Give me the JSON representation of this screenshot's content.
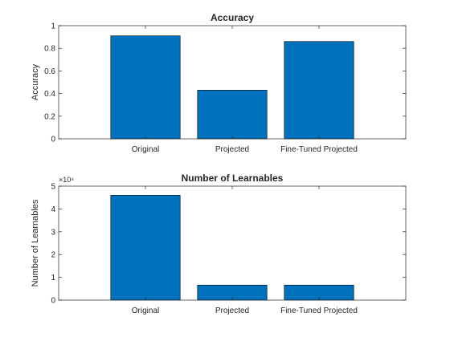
{
  "chart_data": [
    {
      "type": "bar",
      "title": "Accuracy",
      "xlabel": "",
      "ylabel": "Accuracy",
      "categories": [
        "Original",
        "Projected",
        "Fine-Tuned Projected"
      ],
      "values": [
        0.91,
        0.43,
        0.86
      ],
      "ylim": [
        0,
        1
      ],
      "yticks": [
        0,
        0.2,
        0.4,
        0.6,
        0.8,
        1
      ],
      "ytick_labels": [
        "0",
        "0.2",
        "0.4",
        "0.6",
        "0.8",
        "1"
      ],
      "exponent_label": "",
      "bar_color": "#0072bd",
      "grid": false
    },
    {
      "type": "bar",
      "title": "Number of Learnables",
      "xlabel": "",
      "ylabel": "Number of Learnables",
      "categories": [
        "Original",
        "Projected",
        "Fine-Tuned Projected"
      ],
      "values": [
        46000,
        6600,
        6600
      ],
      "ylim": [
        0,
        50000
      ],
      "yticks": [
        0,
        10000,
        20000,
        30000,
        40000,
        50000
      ],
      "ytick_labels": [
        "0",
        "1",
        "2",
        "3",
        "4",
        "5"
      ],
      "exponent_label": "×10⁴",
      "bar_color": "#0072bd",
      "grid": false
    }
  ]
}
